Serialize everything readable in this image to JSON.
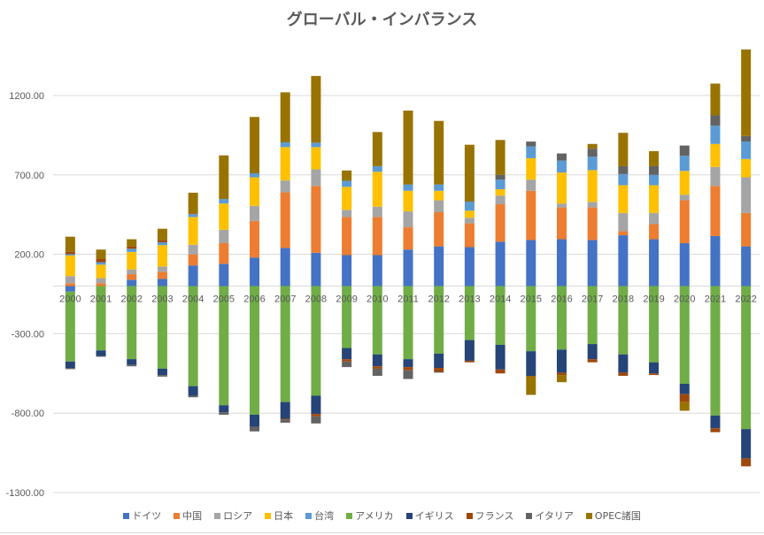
{
  "chart_data": {
    "type": "bar",
    "stacked": true,
    "title": "グローバル・インバランス",
    "xlabel": "",
    "ylabel": "",
    "ylim": [
      -1300,
      1500
    ],
    "yticks": [
      1200,
      700,
      200,
      -300,
      -800,
      -1300
    ],
    "ytick_labels": [
      "1200.00",
      "700.00",
      "200.00",
      "-300.00",
      "-800.00",
      "-1300.00"
    ],
    "grid": true,
    "legend_position": "bottom",
    "categories": [
      "2000",
      "2001",
      "2002",
      "2003",
      "2004",
      "2005",
      "2006",
      "2007",
      "2008",
      "2009",
      "2010",
      "2011",
      "2012",
      "2013",
      "2014",
      "2015",
      "2016",
      "2017",
      "2018",
      "2019",
      "2020",
      "2021",
      "2022"
    ],
    "series": [
      {
        "name": "ドイツ",
        "color": "#4472C4",
        "values": [
          -35,
          0,
          40,
          45,
          130,
          140,
          180,
          240,
          210,
          195,
          195,
          230,
          250,
          245,
          280,
          290,
          295,
          290,
          320,
          295,
          270,
          315,
          250
        ]
      },
      {
        "name": "中国",
        "color": "#ED7D31",
        "values": [
          18,
          18,
          35,
          45,
          70,
          130,
          230,
          350,
          420,
          240,
          240,
          140,
          215,
          150,
          235,
          310,
          200,
          205,
          25,
          95,
          270,
          315,
          210
        ]
      },
      {
        "name": "ロシア",
        "color": "#A5A5A5",
        "values": [
          45,
          32,
          30,
          33,
          60,
          85,
          95,
          75,
          105,
          45,
          65,
          100,
          75,
          35,
          55,
          70,
          25,
          35,
          115,
          70,
          35,
          120,
          225
        ]
      },
      {
        "name": "日本",
        "color": "#FFC000",
        "values": [
          130,
          85,
          110,
          135,
          175,
          165,
          180,
          210,
          140,
          145,
          220,
          130,
          60,
          45,
          40,
          135,
          195,
          200,
          175,
          175,
          150,
          145,
          115
        ]
      },
      {
        "name": "台湾",
        "color": "#5B9BD5",
        "values": [
          8,
          15,
          20,
          18,
          18,
          28,
          25,
          30,
          28,
          38,
          35,
          40,
          40,
          55,
          60,
          75,
          75,
          85,
          70,
          65,
          95,
          115,
          110
        ]
      },
      {
        "name": "アメリカ",
        "color": "#70AD47",
        "values": [
          -440,
          -405,
          -460,
          -520,
          -630,
          -750,
          -810,
          -730,
          -690,
          -390,
          -430,
          -460,
          -425,
          -340,
          -370,
          -410,
          -400,
          -365,
          -430,
          -480,
          -615,
          -815,
          -900
        ]
      },
      {
        "name": "イギリス",
        "color": "#264478",
        "values": [
          -40,
          -35,
          -35,
          -40,
          -60,
          -45,
          -75,
          -105,
          -115,
          -70,
          -75,
          -50,
          -90,
          -130,
          -155,
          -155,
          -145,
          -95,
          -115,
          -70,
          -65,
          -80,
          -185
        ]
      },
      {
        "name": "フランス",
        "color": "#9E480E",
        "values": [
          15,
          20,
          15,
          15,
          5,
          0,
          0,
          -5,
          -15,
          -15,
          -15,
          -20,
          -25,
          -10,
          -25,
          -5,
          -15,
          -20,
          -20,
          -10,
          -50,
          -25,
          -50
        ]
      },
      {
        "name": "イタリア",
        "color": "#636363",
        "values": [
          -8,
          -5,
          -10,
          -10,
          -10,
          -15,
          -30,
          -20,
          -45,
          -35,
          -45,
          -55,
          -5,
          5,
          30,
          30,
          45,
          50,
          50,
          55,
          65,
          65,
          35
        ]
      },
      {
        "name": "OPEC諸国",
        "color": "#997300",
        "values": [
          95,
          60,
          45,
          70,
          130,
          275,
          355,
          315,
          420,
          65,
          215,
          465,
          400,
          355,
          220,
          -115,
          -45,
          30,
          210,
          95,
          -55,
          200,
          545
        ]
      }
    ]
  }
}
